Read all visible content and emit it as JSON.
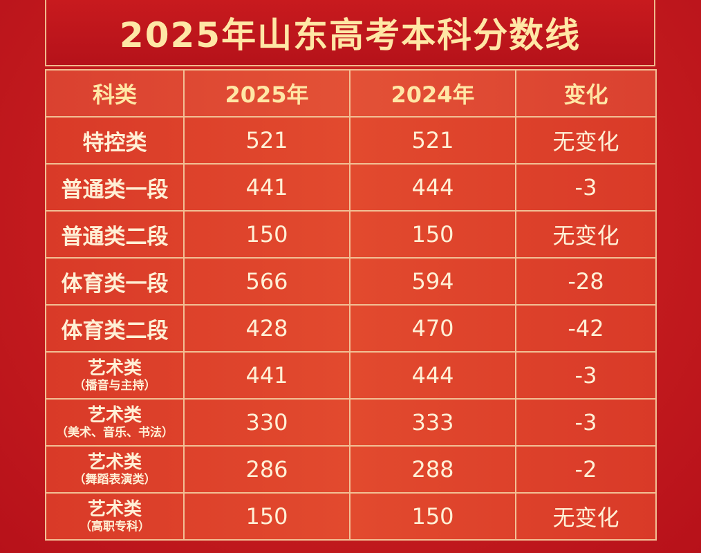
{
  "header": {
    "title": "2025年山东高考本科分数线"
  },
  "table": {
    "columns": [
      "科类",
      "2025年",
      "2024年",
      "变化"
    ],
    "rows": [
      [
        {
          "label": "特控类"
        },
        521,
        521,
        "无变化"
      ],
      [
        {
          "label": "普通类一段"
        },
        441,
        444,
        -3
      ],
      [
        {
          "label": "普通类二段"
        },
        150,
        150,
        "无变化"
      ],
      [
        {
          "label": "体育类一段"
        },
        566,
        594,
        -28
      ],
      [
        {
          "label": "体育类二段"
        },
        428,
        470,
        -42
      ],
      [
        {
          "label": "艺术类",
          "note": "（播音与主持）"
        },
        441,
        444,
        -3
      ],
      [
        {
          "label": "艺术类",
          "note": "（美术、音乐、书法）"
        },
        330,
        333,
        -3
      ],
      [
        {
          "label": "艺术类",
          "note": "（舞蹈表演类）"
        },
        286,
        288,
        -2
      ],
      [
        {
          "label": "艺术类",
          "note": "（高职专科）"
        },
        150,
        150,
        "无变化"
      ]
    ]
  }
}
